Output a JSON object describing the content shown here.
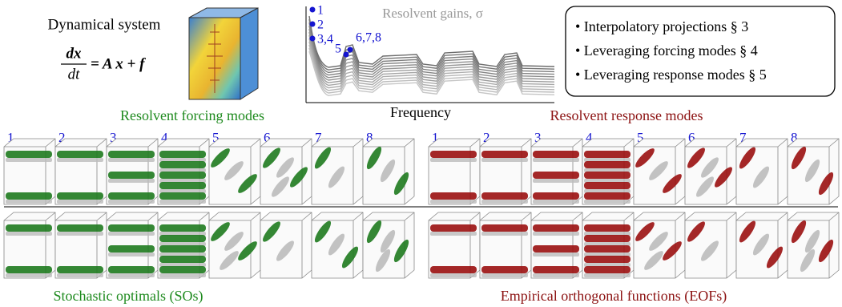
{
  "dynamical_system": {
    "label": "Dynamical system",
    "equation": {
      "numerator": "dx",
      "denominator": "dt",
      "rhs": "= A x + f"
    }
  },
  "gain_plot": {
    "title": "Resolvent gains, σ",
    "x_label": "Frequency",
    "point_labels": [
      "1",
      "2",
      "3,4",
      "5",
      "6,7,8"
    ]
  },
  "sections": [
    "• Interpolatory projections  § 3",
    "• Leveraging forcing modes  § 4",
    "• Leveraging response modes  § 5"
  ],
  "forcing": {
    "title": "Resolvent forcing modes",
    "mode_numbers": [
      "1",
      "2",
      "3",
      "4",
      "5",
      "6",
      "7",
      "8"
    ],
    "bottom_title": "Stochastic optimals (SOs)"
  },
  "response": {
    "title": "Resolvent response modes",
    "mode_numbers": [
      "1",
      "2",
      "3",
      "4",
      "5",
      "6",
      "7",
      "8"
    ],
    "bottom_title": "Empirical orthogonal functions (EOFs)"
  }
}
